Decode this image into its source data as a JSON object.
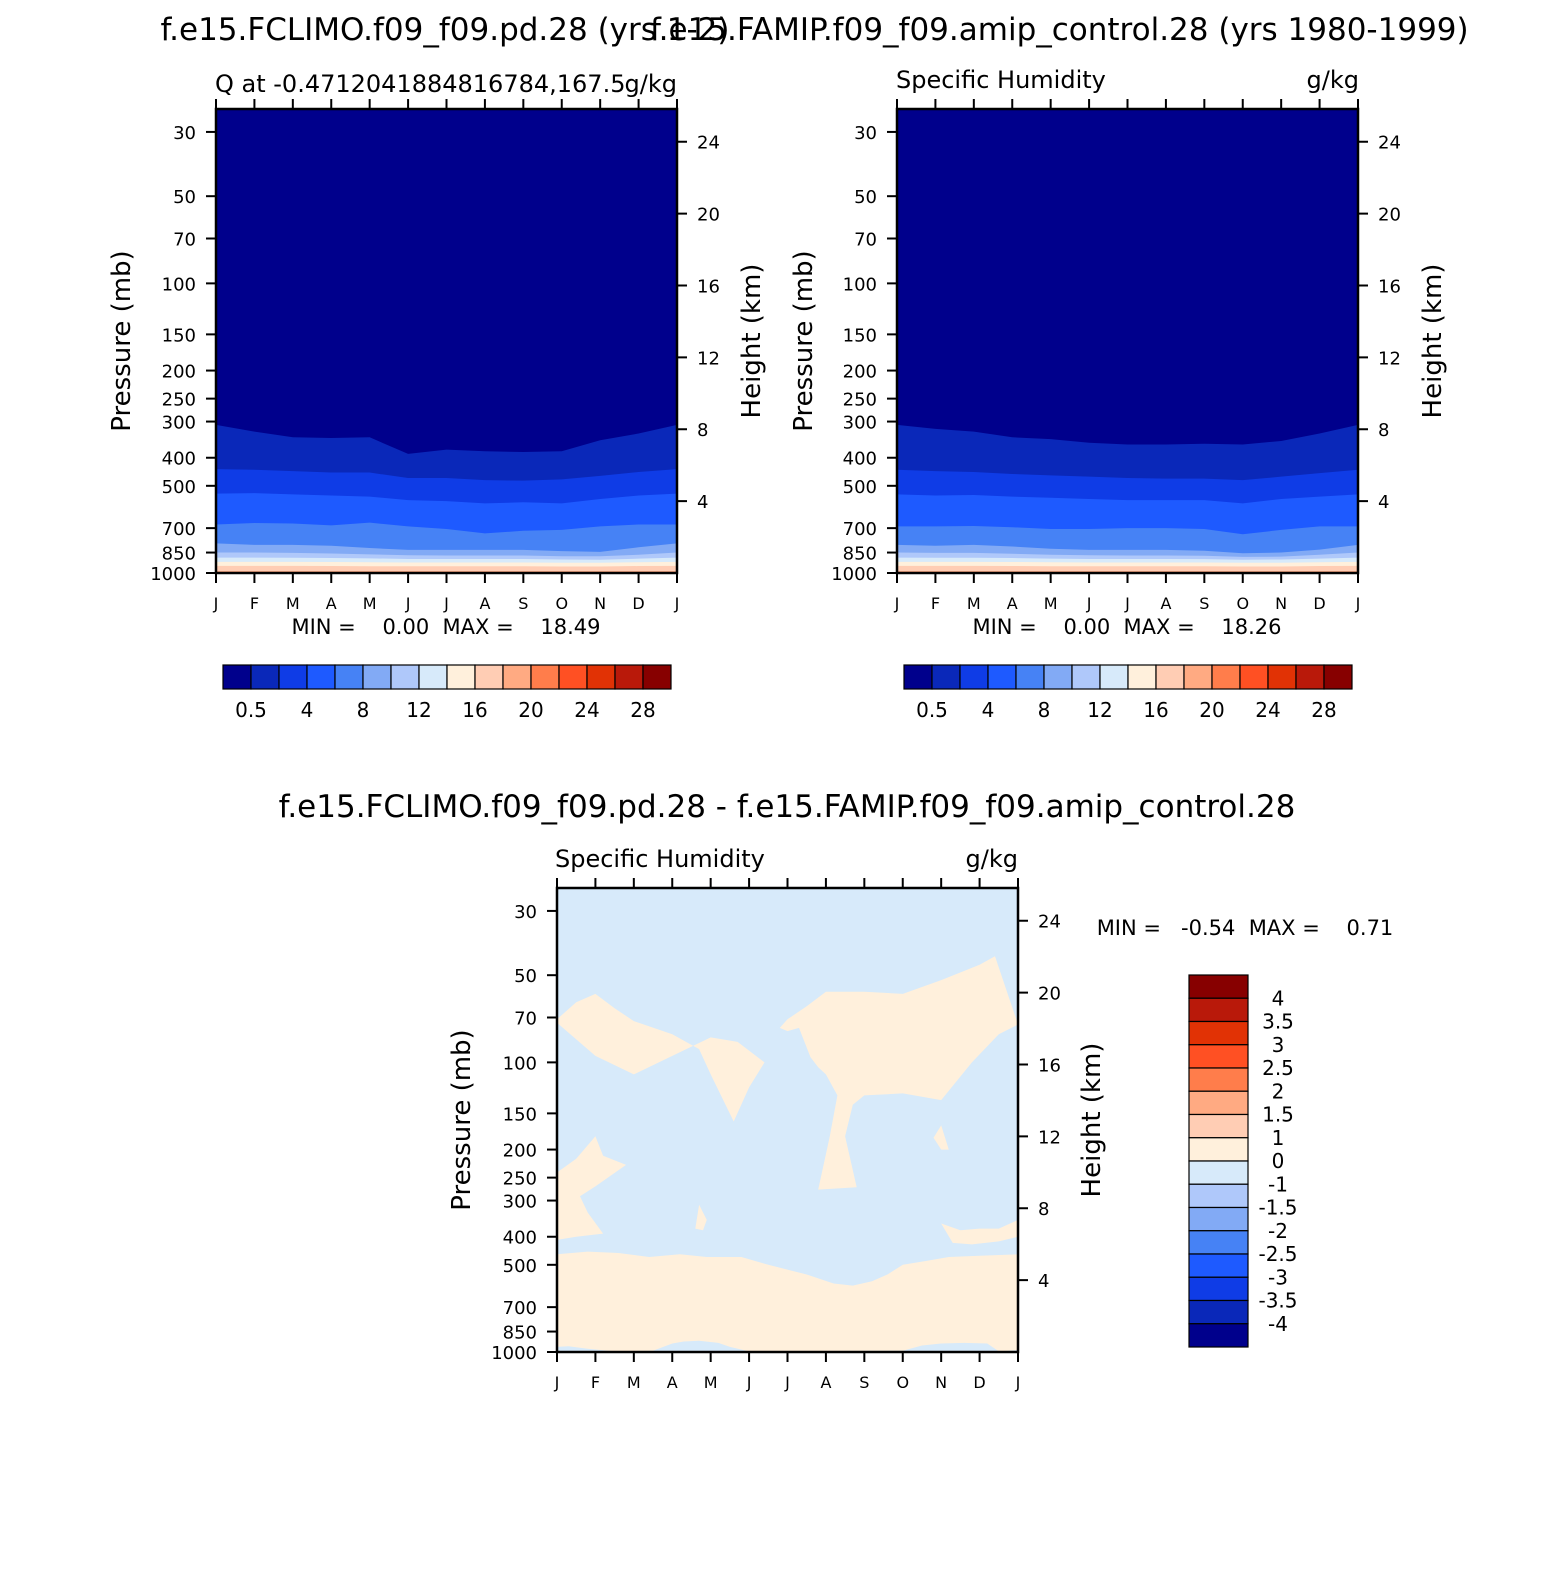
{
  "figure": {
    "left_title": "f.e15.FCLIMO.f09_f09.pd.28 (yrs 1-2)",
    "right_title": "f.e15.FAMIP.f09_f09.amip_control.28 (yrs 1980-1999)",
    "bottom_title": "f.e15.FCLIMO.f09_f09.pd.28 - f.e15.FAMIP.f09_f09.amip_control.28"
  },
  "chart_data": [
    {
      "type": "heatmap",
      "title_left": "Q at -0.4712041884816784,167.5",
      "title_right": "g/kg",
      "xlabel": "",
      "ylabel": "Pressure (mb)",
      "ylabel_right": "Height (km)",
      "x_ticks": [
        "J",
        "F",
        "M",
        "A",
        "M",
        "J",
        "J",
        "A",
        "S",
        "O",
        "N",
        "D",
        "J"
      ],
      "y_ticks": [
        30,
        50,
        70,
        100,
        150,
        200,
        250,
        300,
        400,
        500,
        700,
        850,
        1000
      ],
      "y_scale": "log",
      "y_range_mb": [
        1000,
        25
      ],
      "height_ticks_km": [
        4,
        8,
        12,
        16,
        20,
        24
      ],
      "min_max_text": "MIN =    0.00  MAX =    18.49",
      "colorbar": {
        "labels": [
          "0.5",
          "4",
          "8",
          "12",
          "16",
          "20",
          "24",
          "28"
        ],
        "colors": [
          "#00008c",
          "#0a28b9",
          "#0f3ce6",
          "#1e5aff",
          "#4682f5",
          "#82aaf5",
          "#afc8fa",
          "#d7eafa",
          "#fff0dc",
          "#ffcdb4",
          "#ffaa82",
          "#ff7d4b",
          "#ff5023",
          "#e13205",
          "#b9190a",
          "#870000"
        ]
      },
      "contour_levels": [
        0.5,
        2,
        4,
        6,
        8,
        10,
        12,
        14,
        16,
        18
      ],
      "level_pressures_mb": [
        [
          308,
          325,
          340,
          342,
          340,
          388,
          375,
          380,
          382,
          380,
          348,
          330,
          308
        ],
        [
          438,
          440,
          445,
          450,
          450,
          470,
          470,
          478,
          480,
          475,
          462,
          448,
          438
        ],
        [
          532,
          530,
          535,
          540,
          545,
          560,
          565,
          575,
          570,
          575,
          555,
          540,
          532
        ],
        [
          680,
          672,
          675,
          685,
          670,
          690,
          705,
          730,
          715,
          710,
          690,
          680,
          680
        ],
        [
          790,
          800,
          800,
          805,
          820,
          832,
          832,
          832,
          832,
          840,
          845,
          815,
          790
        ],
        [
          850,
          850,
          852,
          856,
          862,
          868,
          870,
          870,
          870,
          875,
          875,
          865,
          850
        ],
        [
          885,
          885,
          886,
          888,
          890,
          895,
          895,
          895,
          895,
          898,
          900,
          892,
          885
        ],
        [
          915,
          915,
          915,
          916,
          918,
          920,
          920,
          920,
          920,
          922,
          922,
          918,
          915
        ],
        [
          945,
          945,
          945,
          946,
          948,
          948,
          948,
          948,
          948,
          950,
          950,
          946,
          945
        ],
        [
          985,
          985,
          985,
          985,
          985,
          985,
          985,
          985,
          985,
          985,
          985,
          985,
          985
        ]
      ]
    },
    {
      "type": "heatmap",
      "title_left": "Specific Humidity",
      "title_right": "g/kg",
      "xlabel": "",
      "ylabel": "Pressure (mb)",
      "ylabel_right": "Height (km)",
      "x_ticks": [
        "J",
        "F",
        "M",
        "A",
        "M",
        "J",
        "J",
        "A",
        "S",
        "O",
        "N",
        "D",
        "J"
      ],
      "y_ticks": [
        30,
        50,
        70,
        100,
        150,
        200,
        250,
        300,
        400,
        500,
        700,
        850,
        1000
      ],
      "y_scale": "log",
      "y_range_mb": [
        1000,
        25
      ],
      "height_ticks_km": [
        4,
        8,
        12,
        16,
        20,
        24
      ],
      "min_max_text": "MIN =    0.00  MAX =    18.26",
      "colorbar": {
        "labels": [
          "0.5",
          "4",
          "8",
          "12",
          "16",
          "20",
          "24",
          "28"
        ],
        "colors": [
          "#00008c",
          "#0a28b9",
          "#0f3ce6",
          "#1e5aff",
          "#4682f5",
          "#82aaf5",
          "#afc8fa",
          "#d7eafa",
          "#fff0dc",
          "#ffcdb4",
          "#ffaa82",
          "#ff7d4b",
          "#ff5023",
          "#e13205",
          "#b9190a",
          "#870000"
        ]
      },
      "contour_levels": [
        0.5,
        2,
        4,
        6,
        8,
        10,
        12,
        14,
        16,
        18
      ],
      "level_pressures_mb": [
        [
          308,
          318,
          325,
          340,
          345,
          355,
          360,
          360,
          358,
          360,
          350,
          330,
          308
        ],
        [
          440,
          445,
          448,
          455,
          460,
          465,
          470,
          472,
          472,
          478,
          465,
          452,
          440
        ],
        [
          535,
          540,
          538,
          545,
          550,
          555,
          560,
          560,
          560,
          575,
          555,
          545,
          535
        ],
        [
          690,
          690,
          688,
          695,
          705,
          705,
          700,
          700,
          705,
          735,
          710,
          690,
          690
        ],
        [
          800,
          805,
          800,
          810,
          825,
          832,
          832,
          832,
          838,
          855,
          850,
          830,
          800
        ],
        [
          850,
          852,
          852,
          858,
          865,
          868,
          870,
          870,
          872,
          880,
          878,
          865,
          850
        ],
        [
          885,
          886,
          886,
          888,
          892,
          895,
          895,
          895,
          896,
          900,
          898,
          892,
          885
        ],
        [
          915,
          915,
          915,
          916,
          918,
          920,
          920,
          920,
          920,
          922,
          922,
          918,
          915
        ],
        [
          945,
          945,
          945,
          946,
          948,
          948,
          948,
          948,
          948,
          950,
          950,
          946,
          945
        ],
        [
          985,
          985,
          985,
          985,
          985,
          985,
          985,
          985,
          985,
          985,
          985,
          985,
          985
        ]
      ]
    },
    {
      "type": "heatmap",
      "title_left": "Specific Humidity",
      "title_right": "g/kg",
      "xlabel": "",
      "ylabel": "Pressure (mb)",
      "ylabel_right": "Height (km)",
      "x_ticks": [
        "J",
        "F",
        "M",
        "A",
        "M",
        "J",
        "J",
        "A",
        "S",
        "O",
        "N",
        "D",
        "J"
      ],
      "y_ticks": [
        30,
        50,
        70,
        100,
        150,
        200,
        250,
        300,
        400,
        500,
        700,
        850,
        1000
      ],
      "y_scale": "log",
      "y_range_mb": [
        1000,
        25
      ],
      "height_ticks_km": [
        4,
        8,
        12,
        16,
        20,
        24
      ],
      "min_max_text": "MIN =   -0.54  MAX =    0.71",
      "background_value_band": "-1 to 0",
      "colorbar": {
        "labels": [
          "4",
          "3.5",
          "3",
          "2.5",
          "2",
          "1.5",
          "1",
          "0",
          "-1",
          "-1.5",
          "-2",
          "-2.5",
          "-3",
          "-3.5",
          "-4"
        ],
        "colors": [
          "#870000",
          "#b9190a",
          "#e13205",
          "#ff5023",
          "#ff7d4b",
          "#ffaa82",
          "#ffcdb4",
          "#fff0dc",
          "#d7eafa",
          "#afc8fa",
          "#82aaf5",
          "#4682f5",
          "#1e5aff",
          "#0f3ce6",
          "#0a28b9",
          "#00008c"
        ]
      },
      "positive_regions_0_to_1": [
        [
          [
            0,
            71
          ],
          [
            0.5,
            62
          ],
          [
            1,
            58
          ],
          [
            1.5,
            65
          ],
          [
            2,
            72
          ],
          [
            3,
            80
          ],
          [
            3.7,
            90
          ],
          [
            4,
            110
          ],
          [
            4.6,
            160
          ],
          [
            5,
            122
          ],
          [
            5.4,
            100
          ],
          [
            4.7,
            85
          ],
          [
            4,
            82
          ],
          [
            3,
            95
          ],
          [
            2,
            110
          ],
          [
            1,
            95
          ],
          [
            0,
            73
          ]
        ],
        [
          [
            5.8,
            76
          ],
          [
            6,
            71
          ],
          [
            6.5,
            64
          ],
          [
            7,
            57
          ],
          [
            8,
            57
          ],
          [
            9,
            58
          ],
          [
            10,
            52
          ],
          [
            11,
            46
          ],
          [
            11.4,
            43
          ],
          [
            12,
            74
          ],
          [
            11.5,
            80
          ],
          [
            10.8,
            100
          ],
          [
            10,
            135
          ],
          [
            9,
            128
          ],
          [
            8,
            130
          ],
          [
            7.7,
            140
          ],
          [
            7.5,
            180
          ],
          [
            7.8,
            270
          ],
          [
            6.8,
            275
          ],
          [
            7.1,
            180
          ],
          [
            7.3,
            130
          ],
          [
            7,
            110
          ],
          [
            6.8,
            104
          ],
          [
            6.6,
            96
          ],
          [
            6.3,
            76
          ],
          [
            6,
            78
          ],
          [
            5.8,
            76
          ]
        ],
        [
          [
            9.8,
            182
          ],
          [
            10,
            165
          ],
          [
            10.2,
            200
          ],
          [
            10,
            200
          ],
          [
            9.8,
            182
          ]
        ],
        [
          [
            0,
            240
          ],
          [
            0.5,
            215
          ],
          [
            1,
            180
          ],
          [
            1.2,
            210
          ],
          [
            1.8,
            226
          ],
          [
            1,
            268
          ],
          [
            0.6,
            290
          ],
          [
            0.8,
            330
          ],
          [
            1.2,
            390
          ],
          [
            0.5,
            400
          ],
          [
            0,
            410
          ]
        ],
        [
          [
            12,
            350
          ],
          [
            11.5,
            375
          ],
          [
            11,
            375
          ],
          [
            10.5,
            380
          ],
          [
            10,
            360
          ],
          [
            10.3,
            420
          ],
          [
            10.8,
            425
          ],
          [
            11.5,
            415
          ],
          [
            12,
            400
          ]
        ],
        [
          [
            3.7,
            310
          ],
          [
            3.9,
            350
          ],
          [
            3.8,
            380
          ],
          [
            3.6,
            375
          ],
          [
            3.7,
            310
          ]
        ],
        [
          [
            0,
            460
          ],
          [
            0.8,
            450
          ],
          [
            1.6,
            455
          ],
          [
            2.4,
            470
          ],
          [
            3.2,
            460
          ],
          [
            3.9,
            470
          ],
          [
            4.8,
            470
          ],
          [
            5.5,
            500
          ],
          [
            6.5,
            540
          ],
          [
            7.2,
            580
          ],
          [
            7.7,
            590
          ],
          [
            8.2,
            570
          ],
          [
            8.6,
            540
          ],
          [
            9.0,
            500
          ],
          [
            9.6,
            485
          ],
          [
            10.2,
            470
          ],
          [
            11.0,
            465
          ],
          [
            12,
            460
          ],
          [
            12,
            985
          ],
          [
            11.5,
            995
          ],
          [
            11.2,
            935
          ],
          [
            10.6,
            930
          ],
          [
            10.0,
            935
          ],
          [
            9.5,
            950
          ],
          [
            9,
            990
          ],
          [
            5,
            995
          ],
          [
            4.5,
            960
          ],
          [
            4.2,
            930
          ],
          [
            3.7,
            915
          ],
          [
            3.3,
            920
          ],
          [
            3,
            935
          ],
          [
            2.5,
            990
          ],
          [
            1.5,
            995
          ],
          [
            0.8,
            975
          ],
          [
            0.3,
            955
          ],
          [
            0,
            960
          ]
        ]
      ]
    }
  ]
}
